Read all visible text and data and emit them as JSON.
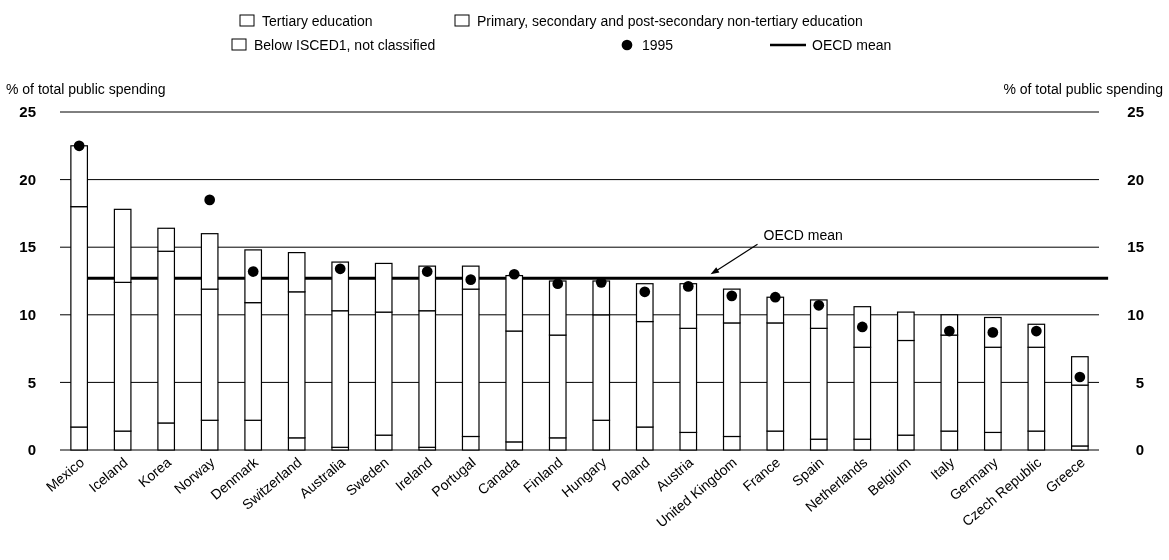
{
  "chart_data": {
    "type": "bar",
    "stacked": true,
    "ylabel": "% of total public spending",
    "y2label": "% of total public spending",
    "categories": [
      "Mexico",
      "Iceland",
      "Korea",
      "Norway",
      "Denmark",
      "Switzerland",
      "Australia",
      "Sweden",
      "Ireland",
      "Portugal",
      "Canada",
      "Finland",
      "Hungary",
      "Poland",
      "Austria",
      "United Kingdom",
      "France",
      "Spain",
      "Netherlands",
      "Belgium",
      "Italy",
      "Germany",
      "Czech Republic",
      "Greece"
    ],
    "series": [
      {
        "name": "Below ISCED1, not classified",
        "color": "#ffffff",
        "values": [
          1.7,
          1.4,
          2.0,
          2.2,
          2.2,
          0.9,
          0.2,
          1.1,
          0.2,
          1.0,
          0.6,
          0.9,
          2.2,
          1.7,
          1.3,
          1.0,
          1.4,
          0.8,
          0.8,
          1.1,
          1.4,
          1.3,
          1.4,
          0.3
        ]
      },
      {
        "name": "Primary, secondary and post-secondary non-tertiary education",
        "color": "#ffffff",
        "values": [
          16.3,
          11.0,
          12.7,
          9.7,
          8.7,
          10.8,
          10.1,
          9.1,
          10.1,
          10.9,
          8.2,
          7.6,
          7.8,
          7.8,
          7.7,
          8.4,
          8.0,
          8.2,
          6.8,
          7.0,
          7.1,
          6.3,
          6.2,
          4.5
        ]
      },
      {
        "name": "Tertiary education",
        "color": "#ffffff",
        "values": [
          4.5,
          5.4,
          1.7,
          4.1,
          3.9,
          2.9,
          3.6,
          3.6,
          3.3,
          1.7,
          4.1,
          4.0,
          2.5,
          2.8,
          3.3,
          2.5,
          1.9,
          2.1,
          3.0,
          2.1,
          1.5,
          2.2,
          1.7,
          2.1
        ]
      },
      {
        "name": "1995",
        "type": "scatter",
        "color": "#000000",
        "values": [
          22.5,
          null,
          null,
          18.5,
          13.2,
          null,
          13.4,
          null,
          13.2,
          12.6,
          13.0,
          12.3,
          12.4,
          11.7,
          12.1,
          11.4,
          11.3,
          10.7,
          9.1,
          null,
          8.8,
          8.7,
          8.8,
          5.4
        ]
      }
    ],
    "ylim": [
      0,
      25
    ],
    "yticks": [
      0,
      5,
      10,
      15,
      20,
      25
    ],
    "y2lim": [
      0,
      25
    ],
    "y2ticks": [
      0,
      5,
      10,
      15,
      20,
      25
    ],
    "ref_lines": [
      {
        "axis": "y",
        "value": 12.7,
        "label": "OECD mean",
        "color": "#000000"
      }
    ],
    "grid": "y",
    "legend": "top",
    "marker": "circle"
  }
}
